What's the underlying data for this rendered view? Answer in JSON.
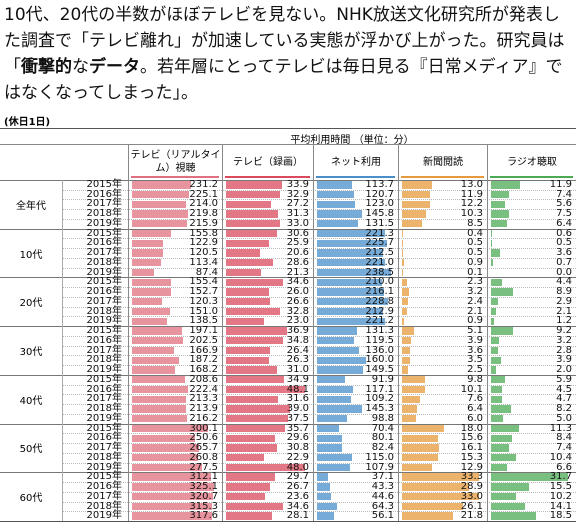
{
  "intro": {
    "segments": [
      {
        "text": "10代、20代の半数がほぼテレビを見ない。NHK放送文化研究所が発表した調査で「テレビ離れ」が加速している実態が浮かび上がった。研究員は「",
        "bold": false
      },
      {
        "text": "衝撃的",
        "bold": true
      },
      {
        "text": "な",
        "bold": false
      },
      {
        "text": "データ",
        "bold": true
      },
      {
        "text": "。若年層にとってテレビは毎日見る『日常メディア』ではなくなってしまった」。",
        "bold": false
      }
    ]
  },
  "table": {
    "note": "(休日1日)",
    "caption": "平均利用時間 （単位：分）",
    "columns": [
      {
        "label": "テレビ（リアルタイム）視聴",
        "color": "#e0707f"
      },
      {
        "label": "テレビ（録画）",
        "color": "#d94a5c"
      },
      {
        "label": "ネット利用",
        "color": "#4a8fc9"
      },
      {
        "label": "新聞閲読",
        "color": "#e69a3c"
      },
      {
        "label": "ラジオ聴取",
        "color": "#4caa55"
      }
    ],
    "groups": [
      {
        "label": "全年代",
        "rows": [
          {
            "year": "2015年",
            "values": [
              231.2,
              33.9,
              113.7,
              13.0,
              11.9
            ],
            "value_labels": [
              "231.2",
              "33.9",
              "113.7",
              "13.0",
              "11.9"
            ]
          },
          {
            "year": "2016年",
            "values": [
              225.1,
              32.9,
              120.7,
              11.9,
              7.4
            ],
            "value_labels": [
              "225.1",
              "32.9",
              "120.7",
              "11.9",
              "7.4"
            ]
          },
          {
            "year": "2017年",
            "values": [
              214.0,
              27.2,
              123.0,
              12.2,
              5.6
            ],
            "value_labels": [
              "214.0",
              "27.2",
              "123.0",
              "12.2",
              "5.6"
            ]
          },
          {
            "year": "2018年",
            "values": [
              219.8,
              31.3,
              145.8,
              10.3,
              7.5
            ],
            "value_labels": [
              "219.8",
              "31.3",
              "145.8",
              "10.3",
              "7.5"
            ]
          },
          {
            "year": "2019年",
            "values": [
              215.9,
              33.0,
              131.5,
              8.5,
              6.4
            ],
            "value_labels": [
              "215.9",
              "33.0",
              "131.5",
              "8.5",
              "6.4"
            ]
          }
        ]
      },
      {
        "label": "10代",
        "rows": [
          {
            "year": "2015年",
            "values": [
              155.8,
              30.6,
              221.3,
              0.4,
              0.6
            ],
            "value_labels": [
              "155.8",
              "30.6",
              "221.3",
              "0.4",
              "0.6"
            ]
          },
          {
            "year": "2016年",
            "values": [
              122.9,
              25.9,
              225.7,
              0.5,
              0.5
            ],
            "value_labels": [
              "122.9",
              "25.9",
              "225.7",
              "0.5",
              "0.5"
            ]
          },
          {
            "year": "2017年",
            "values": [
              120.5,
              20.6,
              212.5,
              0.5,
              3.6
            ],
            "value_labels": [
              "120.5",
              "20.6",
              "212.5",
              "0.5",
              "3.6"
            ]
          },
          {
            "year": "2018年",
            "values": [
              113.4,
              28.6,
              221.0,
              0.9,
              0.7
            ],
            "value_labels": [
              "113.4",
              "28.6",
              "221.0",
              "0.9",
              "0.7"
            ]
          },
          {
            "year": "2019年",
            "values": [
              87.4,
              21.3,
              238.5,
              0.1,
              0.0
            ],
            "value_labels": [
              "87.4",
              "21.3",
              "238.5",
              "0.1",
              "0.0"
            ]
          }
        ]
      },
      {
        "label": "20代",
        "rows": [
          {
            "year": "2015年",
            "values": [
              155.4,
              34.6,
              210.0,
              2.3,
              4.4
            ],
            "value_labels": [
              "155.4",
              "34.6",
              "210.0",
              "2.3",
              "4.4"
            ]
          },
          {
            "year": "2016年",
            "values": [
              152.7,
              26.0,
              216.1,
              3.2,
              8.9
            ],
            "value_labels": [
              "152.7",
              "26.0",
              "216.1",
              "3.2",
              "8.9"
            ]
          },
          {
            "year": "2017年",
            "values": [
              120.3,
              26.6,
              228.8,
              2.4,
              2.9
            ],
            "value_labels": [
              "120.3",
              "26.6",
              "228.8",
              "2.4",
              "2.9"
            ]
          },
          {
            "year": "2018年",
            "values": [
              151.0,
              32.8,
              212.9,
              2.1,
              2.1
            ],
            "value_labels": [
              "151.0",
              "32.8",
              "212.9",
              "2.1",
              "2.1"
            ]
          },
          {
            "year": "2019年",
            "values": [
              138.5,
              23.0,
              221.2,
              0.9,
              1.2
            ],
            "value_labels": [
              "138.5",
              "23.0",
              "221.2",
              "0.9",
              "1.2"
            ]
          }
        ]
      },
      {
        "label": "30代",
        "rows": [
          {
            "year": "2015年",
            "values": [
              197.1,
              36.9,
              131.3,
              5.1,
              9.2
            ],
            "value_labels": [
              "197.1",
              "36.9",
              "131.3",
              "5.1",
              "9.2"
            ]
          },
          {
            "year": "2016年",
            "values": [
              202.5,
              34.8,
              119.5,
              3.9,
              3.2
            ],
            "value_labels": [
              "202.5",
              "34.8",
              "119.5",
              "3.9",
              "3.2"
            ]
          },
          {
            "year": "2017年",
            "values": [
              166.9,
              26.4,
              136.0,
              3.6,
              2.8
            ],
            "value_labels": [
              "166.9",
              "26.4",
              "136.0",
              "3.6",
              "2.8"
            ]
          },
          {
            "year": "2018年",
            "values": [
              187.2,
              26.3,
              160.0,
              3.5,
              3.9
            ],
            "value_labels": [
              "187.2",
              "26.3",
              "160.0",
              "3.5",
              "3.9"
            ]
          },
          {
            "year": "2019年",
            "values": [
              168.2,
              31.0,
              149.5,
              2.5,
              2.0
            ],
            "value_labels": [
              "168.2",
              "31.0",
              "149.5",
              "2.5",
              "2.0"
            ]
          }
        ]
      },
      {
        "label": "40代",
        "rows": [
          {
            "year": "2015年",
            "values": [
              208.6,
              34.9,
              91.9,
              9.8,
              5.9
            ],
            "value_labels": [
              "208.6",
              "34.9",
              "91.9",
              "9.8",
              "5.9"
            ]
          },
          {
            "year": "2016年",
            "values": [
              222.4,
              48.1,
              117.1,
              10.1,
              4.5
            ],
            "value_labels": [
              "222.4",
              "48.1",
              "117.1",
              "10.1",
              "4.5"
            ]
          },
          {
            "year": "2017年",
            "values": [
              213.3,
              31.6,
              109.2,
              7.6,
              4.7
            ],
            "value_labels": [
              "213.3",
              "31.6",
              "109.2",
              "7.6",
              "4.7"
            ]
          },
          {
            "year": "2018年",
            "values": [
              213.9,
              39.0,
              145.3,
              6.4,
              8.2
            ],
            "value_labels": [
              "213.9",
              "39.0",
              "145.3",
              "6.4",
              "8.2"
            ]
          },
          {
            "year": "2019年",
            "values": [
              216.2,
              37.5,
              98.8,
              6.0,
              5.0
            ],
            "value_labels": [
              "216.2",
              "37.5",
              "98.8",
              "6.0",
              "5.0"
            ]
          }
        ]
      },
      {
        "label": "50代",
        "rows": [
          {
            "year": "2015年",
            "values": [
              300.1,
              35.7,
              70.4,
              18.0,
              11.3
            ],
            "value_labels": [
              "300.1",
              "35.7",
              "70.4",
              "18.0",
              "11.3"
            ]
          },
          {
            "year": "2016年",
            "values": [
              250.6,
              29.6,
              80.1,
              15.6,
              8.4
            ],
            "value_labels": [
              "250.6",
              "29.6",
              "80.1",
              "15.6",
              "8.4"
            ]
          },
          {
            "year": "2017年",
            "values": [
              265.7,
              30.8,
              82.4,
              16.1,
              7.4
            ],
            "value_labels": [
              "265.7",
              "30.8",
              "82.4",
              "16.1",
              "7.4"
            ]
          },
          {
            "year": "2018年",
            "values": [
              260.8,
              22.9,
              115.0,
              15.3,
              10.4
            ],
            "value_labels": [
              "260.8",
              "22.9",
              "115.0",
              "15.3",
              "10.4"
            ]
          },
          {
            "year": "2019年",
            "values": [
              277.5,
              48.0,
              107.9,
              12.9,
              6.6
            ],
            "value_labels": [
              "277.5",
              "48.0",
              "107.9",
              "12.9",
              "6.6"
            ]
          }
        ]
      },
      {
        "label": "60代",
        "rows": [
          {
            "year": "2015年",
            "values": [
              312.1,
              29.7,
              37.1,
              33.3,
              31.7
            ],
            "value_labels": [
              "312.1",
              "29.7",
              "37.1",
              "33.3",
              "31.7"
            ]
          },
          {
            "year": "2016年",
            "values": [
              325.1,
              26.7,
              43.3,
              28.9,
              15.5
            ],
            "value_labels": [
              "325.1",
              "26.7",
              "43.3",
              "28.9",
              "15.5"
            ]
          },
          {
            "year": "2017年",
            "values": [
              320.7,
              23.6,
              44.6,
              33.0,
              10.2
            ],
            "value_labels": [
              "320.7",
              "23.6",
              "44.6",
              "33.0",
              "10.2"
            ]
          },
          {
            "year": "2018年",
            "values": [
              315.3,
              34.6,
              64.3,
              26.1,
              14.1
            ],
            "value_labels": [
              "315.3",
              "34.6",
              "64.3",
              "26.1",
              "14.1"
            ]
          },
          {
            "year": "2019年",
            "values": [
              317.6,
              28.1,
              56.1,
              21.8,
              18.5
            ],
            "value_labels": [
              "317.6",
              "28.1",
              "56.1",
              "21.8",
              "18.5"
            ]
          }
        ]
      }
    ]
  }
}
